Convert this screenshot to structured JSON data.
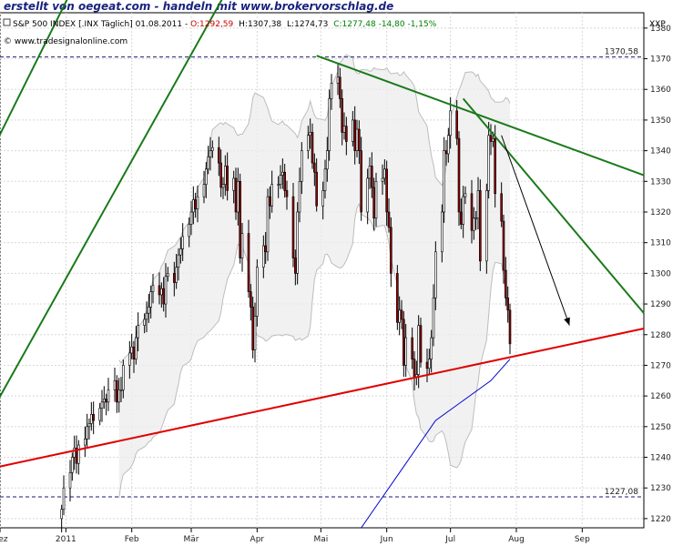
{
  "banner": "erstellt von oegeat.com - handeln mit www.brokervorschlag.de",
  "header": {
    "symbol": "S&P 500 INDEX [.INX Täglich] 01.08.2011 - ",
    "open": "O:1292,59",
    "high": "H:1307,38",
    "low": "L:1274,73",
    "close_change": "C:1277,48 -14,80 -1,15%",
    "source": "© www.tradesignalonline.com",
    "axis_code": "XXP"
  },
  "colors": {
    "open": "#cc0000",
    "close_change": "#008000",
    "trend_green": "#1a7a1a",
    "support_red": "#e00000",
    "ma_blue": "#0000cc",
    "band": "#bdbdbd",
    "up_candle": "#ffffff",
    "down_candle": "#8b0000"
  },
  "chart_data": {
    "type": "candlestick",
    "y_ticks": [
      1220,
      1230,
      1240,
      1250,
      1260,
      1270,
      1280,
      1290,
      1300,
      1310,
      1320,
      1330,
      1340,
      1350,
      1360,
      1370,
      1380
    ],
    "ylim": [
      1217,
      1385
    ],
    "x_months": [
      "Dez",
      "2011",
      "Feb",
      "Mär",
      "Apr",
      "Mai",
      "Jun",
      "Jul",
      "Aug",
      "Sep"
    ],
    "x_range": [
      "2010-12-01",
      "2011-09-30"
    ],
    "month_starts": [
      "2010-12-01",
      "2011-01-01",
      "2011-02-01",
      "2011-03-01",
      "2011-04-01",
      "2011-05-01",
      "2011-06-01",
      "2011-07-01",
      "2011-08-01",
      "2011-09-01"
    ],
    "levels": [
      {
        "label": "1370,58",
        "value": 1370.58
      },
      {
        "label": "1227,08",
        "value": 1227.08
      }
    ],
    "closes": [
      1223,
      1230,
      1235,
      1240,
      1243,
      1238,
      1244,
      1246,
      1250,
      1251,
      1254,
      1252,
      1256,
      1258,
      1259,
      1258,
      1262,
      1265,
      1258,
      1262,
      1262,
      1270,
      1274,
      1276,
      1272,
      1279,
      1283,
      1285,
      1287,
      1289,
      1294,
      1296,
      1293,
      1295,
      1290,
      1299,
      1300,
      1297,
      1302,
      1306,
      1308,
      1312,
      1316,
      1320,
      1324,
      1321,
      1325,
      1329,
      1334,
      1338,
      1340,
      1341,
      1336,
      1328,
      1329,
      1335,
      1327,
      1331,
      1320,
      1330,
      1305,
      1313,
      1294,
      1289,
      1275,
      1286,
      1302,
      1309,
      1307,
      1325,
      1322,
      1329,
      1329,
      1332,
      1333,
      1327,
      1325,
      1305,
      1300,
      1320,
      1330,
      1340,
      1345,
      1346,
      1336,
      1333,
      1322,
      1327,
      1334,
      1340,
      1357,
      1362,
      1364,
      1357,
      1346,
      1348,
      1343,
      1350,
      1340,
      1347,
      1340,
      1320,
      1331,
      1335,
      1328,
      1318,
      1330,
      1331,
      1334,
      1320,
      1315,
      1300,
      1284,
      1288,
      1285,
      1270,
      1279,
      1272,
      1266,
      1267,
      1283,
      1271,
      1269,
      1272,
      1279,
      1292,
      1307,
      1320,
      1340,
      1339,
      1345,
      1353,
      1344,
      1320,
      1316,
      1325,
      1326,
      1314,
      1318,
      1318,
      1327,
      1304,
      1327,
      1345,
      1343,
      1344,
      1326,
      1317,
      1301,
      1292,
      1288,
      1277
    ],
    "trendlines": [
      {
        "name": "green-channel-lower",
        "from": {
          "date": "2010-11-15",
          "value": 1240
        },
        "to": {
          "date": "2011-03-20",
          "value": 1395
        }
      },
      {
        "name": "green-channel-upper",
        "from": {
          "date": "2010-11-15",
          "value": 1323
        },
        "to": {
          "date": "2011-01-25",
          "value": 1422
        }
      },
      {
        "name": "green-upper-long",
        "from": {
          "date": "2011-04-29",
          "value": 1371
        },
        "to": {
          "date": "2011-09-30",
          "value": 1332
        }
      },
      {
        "name": "green-upper-short",
        "from": {
          "date": "2011-07-07",
          "value": 1357
        },
        "to": {
          "date": "2011-09-30",
          "value": 1287
        }
      },
      {
        "name": "red-support",
        "from": {
          "date": "2010-12-01",
          "value": 1237
        },
        "to": {
          "date": "2011-09-30",
          "value": 1282
        }
      }
    ],
    "arrow": {
      "from": {
        "date": "2011-07-25",
        "value": 1345
      },
      "to": {
        "date": "2011-08-26",
        "value": 1283
      }
    },
    "ma_line": [
      {
        "date": "2011-05-20",
        "value": 1217
      },
      {
        "date": "2011-05-27",
        "value": 1224
      },
      {
        "date": "2011-06-10",
        "value": 1238
      },
      {
        "date": "2011-06-24",
        "value": 1252
      },
      {
        "date": "2011-07-08",
        "value": 1259
      },
      {
        "date": "2011-07-20",
        "value": 1265
      },
      {
        "date": "2011-07-29",
        "value": 1272
      }
    ]
  }
}
